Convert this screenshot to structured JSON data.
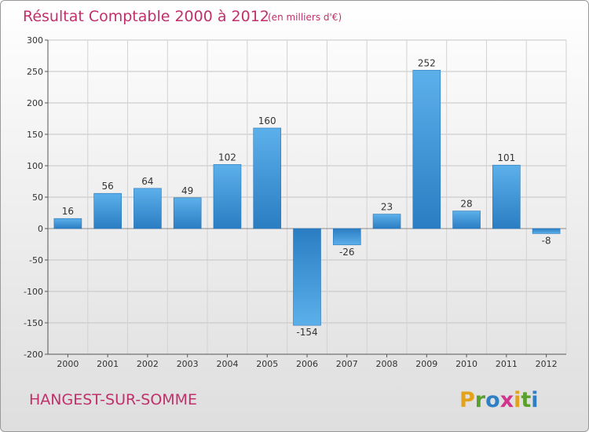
{
  "chart_data": {
    "type": "bar",
    "title": "Résultat Comptable 2000 à 2012",
    "subtitle": "(en milliers d'€)",
    "categories": [
      "2000",
      "2001",
      "2002",
      "2003",
      "2004",
      "2005",
      "2006",
      "2007",
      "2008",
      "2009",
      "2010",
      "2011",
      "2012"
    ],
    "values": [
      16,
      56,
      64,
      49,
      102,
      160,
      -154,
      -26,
      23,
      252,
      28,
      101,
      -8
    ],
    "data_labels": [
      "16",
      "56",
      "64",
      "49",
      "102",
      "160",
      "-154",
      "-26",
      "23",
      "252",
      "28",
      "101",
      "-8"
    ],
    "y_ticks": [
      300,
      250,
      200,
      150,
      100,
      50,
      0,
      -50,
      -100,
      -150,
      -200
    ],
    "y_tick_labels": [
      "300",
      "250",
      "200",
      "150",
      "100",
      "50",
      "0",
      "-50",
      "-100",
      "-150",
      "-200"
    ],
    "ylim": [
      -200,
      300
    ],
    "grid": true,
    "xlabel": "",
    "ylabel": "",
    "bar_color": "#3a94d6"
  },
  "commune": "HANGEST-SUR-SOMME",
  "brand": {
    "name": "Proxiti",
    "letters": [
      {
        "ch": "P",
        "color": "#e2a21b"
      },
      {
        "ch": "r",
        "color": "#5aa02c"
      },
      {
        "ch": "o",
        "color": "#2f7fc4"
      },
      {
        "ch": "x",
        "color": "#d0348c"
      },
      {
        "ch": "i",
        "color": "#e2a21b"
      },
      {
        "ch": "t",
        "color": "#5aa02c"
      },
      {
        "ch": "i",
        "color": "#2f7fc4"
      }
    ]
  }
}
